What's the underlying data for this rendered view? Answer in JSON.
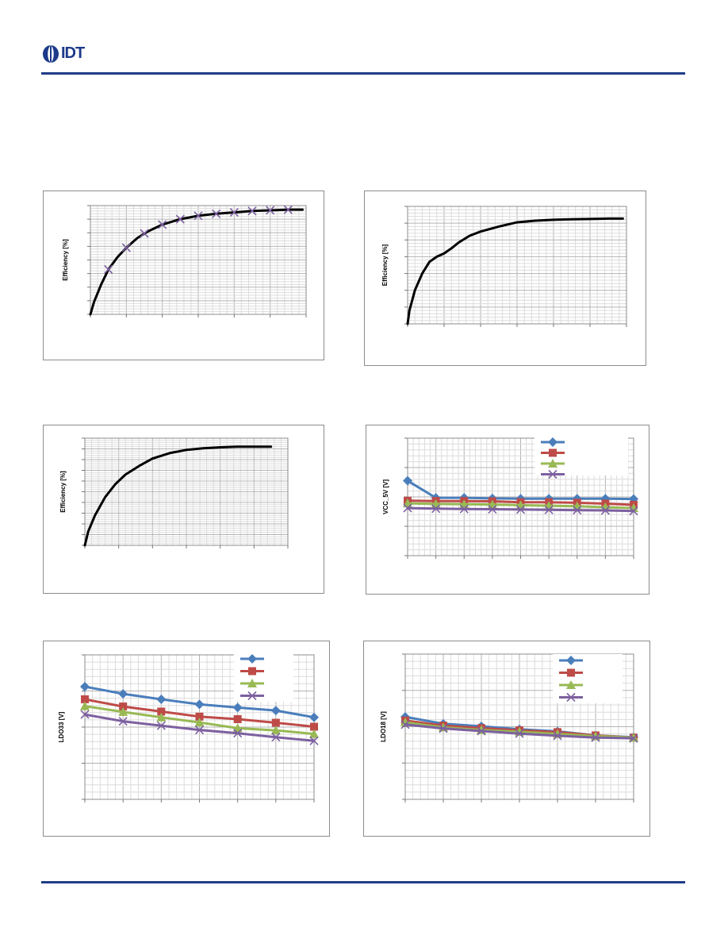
{
  "header": {
    "logo_text": "IDT",
    "brand_color": "#1d3a8a",
    "rule_color": "#1f3c88"
  },
  "colors": {
    "blue": "#4a7ebb",
    "red": "#be4b48",
    "green": "#98b954",
    "purple": "#7d60a0",
    "black": "#000000",
    "grid_major": "#b3b3b3",
    "grid_minor": "#dcdcdc"
  },
  "chart_data": [
    {
      "id": "c1",
      "type": "line",
      "ylabel": "Efficiency [%]",
      "xlim": [
        0,
        6
      ],
      "ylim": [
        0,
        8
      ],
      "x_major_divisions": 6,
      "y_major_divisions": 8,
      "series": [
        {
          "color": "black",
          "line_width": 3,
          "marker": "none",
          "x": [
            0,
            0.1,
            0.3,
            0.5,
            0.75,
            1.0,
            1.3,
            1.6,
            2.0,
            2.5,
            3.0,
            3.5,
            4.0,
            4.5,
            5.0,
            5.5,
            5.9
          ],
          "y": [
            0,
            0.9,
            2.2,
            3.3,
            4.2,
            4.9,
            5.6,
            6.1,
            6.6,
            7.0,
            7.25,
            7.4,
            7.5,
            7.6,
            7.65,
            7.7,
            7.7
          ]
        },
        {
          "color": "purple",
          "line_width": 0,
          "marker": "x",
          "x": [
            0.5,
            1.0,
            1.5,
            2.0,
            2.5,
            3.0,
            3.5,
            4.0,
            4.5,
            5.0,
            5.5
          ],
          "y": [
            3.3,
            4.9,
            5.95,
            6.6,
            7.0,
            7.25,
            7.4,
            7.5,
            7.6,
            7.65,
            7.7
          ]
        }
      ]
    },
    {
      "id": "c2",
      "type": "line",
      "ylabel": "Efficiency [%]",
      "xlim": [
        0,
        6
      ],
      "ylim": [
        0,
        7
      ],
      "x_major_divisions": 6,
      "y_major_divisions": 7,
      "series": [
        {
          "color": "black",
          "line_width": 3,
          "marker": "none",
          "x": [
            0,
            0.05,
            0.2,
            0.4,
            0.6,
            0.8,
            1.0,
            1.2,
            1.4,
            1.7,
            2.0,
            2.5,
            3.0,
            3.5,
            4.0,
            4.5,
            5.0,
            5.5,
            5.9
          ],
          "y": [
            0,
            0.8,
            2.0,
            3.0,
            3.7,
            4.0,
            4.2,
            4.5,
            4.85,
            5.25,
            5.5,
            5.8,
            6.05,
            6.15,
            6.2,
            6.23,
            6.25,
            6.27,
            6.27
          ]
        }
      ]
    },
    {
      "id": "c3",
      "type": "line",
      "ylabel": "Efficiency [%]",
      "xlim": [
        0,
        6
      ],
      "ylim": [
        0,
        10
      ],
      "x_major_divisions": 6,
      "y_major_divisions": 10,
      "series": [
        {
          "color": "black",
          "line_width": 3,
          "marker": "none",
          "x": [
            0,
            0.1,
            0.3,
            0.6,
            0.9,
            1.2,
            1.6,
            2.0,
            2.5,
            3.0,
            3.5,
            4.0,
            4.5,
            5.0,
            5.5
          ],
          "y": [
            0,
            1.3,
            2.8,
            4.5,
            5.7,
            6.6,
            7.4,
            8.1,
            8.6,
            8.9,
            9.05,
            9.15,
            9.2,
            9.2,
            9.2
          ]
        }
      ]
    },
    {
      "id": "c4",
      "type": "line",
      "ylabel": "VCC_5V [V]",
      "xlim": [
        0,
        8
      ],
      "ylim": [
        0,
        4
      ],
      "x_major_divisions": 8,
      "y_major_divisions": 4,
      "legend": "top-right",
      "series": [
        {
          "color": "blue",
          "line_width": 3,
          "marker": "diamond",
          "x": [
            0,
            1,
            2,
            3,
            4,
            5,
            6,
            7,
            8
          ],
          "y": [
            2.55,
            1.97,
            1.97,
            1.95,
            1.94,
            1.94,
            1.94,
            1.94,
            1.93
          ]
        },
        {
          "color": "red",
          "line_width": 3,
          "marker": "square",
          "x": [
            0,
            1,
            2,
            3,
            4,
            5,
            6,
            7,
            8
          ],
          "y": [
            1.87,
            1.86,
            1.86,
            1.85,
            1.82,
            1.82,
            1.8,
            1.77,
            1.73
          ]
        },
        {
          "color": "green",
          "line_width": 3,
          "marker": "triangle",
          "x": [
            0,
            1,
            2,
            3,
            4,
            5,
            6,
            7,
            8
          ],
          "y": [
            1.78,
            1.76,
            1.75,
            1.74,
            1.72,
            1.7,
            1.68,
            1.65,
            1.62
          ]
        },
        {
          "color": "purple",
          "line_width": 3,
          "marker": "x",
          "x": [
            0,
            1,
            2,
            3,
            4,
            5,
            6,
            7,
            8
          ],
          "y": [
            1.62,
            1.6,
            1.59,
            1.58,
            1.57,
            1.56,
            1.55,
            1.54,
            1.52
          ]
        }
      ]
    },
    {
      "id": "c5",
      "type": "line",
      "ylabel": "LDO33 [V]",
      "xlim": [
        0,
        6
      ],
      "ylim": [
        0,
        4
      ],
      "x_major_divisions": 6,
      "y_major_divisions": 4,
      "legend": "top-right",
      "series": [
        {
          "color": "blue",
          "line_width": 3,
          "marker": "diamond",
          "x": [
            0,
            1,
            2,
            3,
            4,
            5,
            6
          ],
          "y": [
            3.12,
            2.92,
            2.77,
            2.63,
            2.54,
            2.46,
            2.27
          ]
        },
        {
          "color": "red",
          "line_width": 3,
          "marker": "square",
          "x": [
            0,
            1,
            2,
            3,
            4,
            5,
            6
          ],
          "y": [
            2.77,
            2.57,
            2.43,
            2.29,
            2.22,
            2.12,
            2.01
          ]
        },
        {
          "color": "green",
          "line_width": 3,
          "marker": "triangle",
          "x": [
            0,
            1,
            2,
            3,
            4,
            5,
            6
          ],
          "y": [
            2.58,
            2.42,
            2.27,
            2.13,
            1.97,
            1.91,
            1.81
          ]
        },
        {
          "color": "purple",
          "line_width": 3,
          "marker": "x",
          "x": [
            0,
            1,
            2,
            3,
            4,
            5,
            6
          ],
          "y": [
            2.35,
            2.16,
            2.04,
            1.92,
            1.83,
            1.72,
            1.62
          ]
        }
      ]
    },
    {
      "id": "c6",
      "type": "line",
      "ylabel": "LDO18 [V]",
      "xlim": [
        0,
        6
      ],
      "ylim": [
        0,
        4
      ],
      "x_major_divisions": 6,
      "y_major_divisions": 4,
      "legend": "top-right",
      "series": [
        {
          "color": "blue",
          "line_width": 3,
          "marker": "diamond",
          "x": [
            0,
            1,
            2,
            3,
            4,
            5,
            6
          ],
          "y": [
            2.27,
            2.08,
            2.01,
            1.93,
            1.87,
            1.76,
            1.71
          ]
        },
        {
          "color": "red",
          "line_width": 3,
          "marker": "square",
          "x": [
            0,
            1,
            2,
            3,
            4,
            5,
            6
          ],
          "y": [
            2.17,
            2.03,
            1.96,
            1.9,
            1.85,
            1.76,
            1.7
          ]
        },
        {
          "color": "green",
          "line_width": 3,
          "marker": "triangle",
          "x": [
            0,
            1,
            2,
            3,
            4,
            5,
            6
          ],
          "y": [
            2.12,
            1.98,
            1.91,
            1.86,
            1.8,
            1.74,
            1.7
          ]
        },
        {
          "color": "purple",
          "line_width": 3,
          "marker": "x",
          "x": [
            0,
            1,
            2,
            3,
            4,
            5,
            6
          ],
          "y": [
            2.06,
            1.95,
            1.88,
            1.81,
            1.75,
            1.7,
            1.68
          ]
        }
      ]
    }
  ]
}
